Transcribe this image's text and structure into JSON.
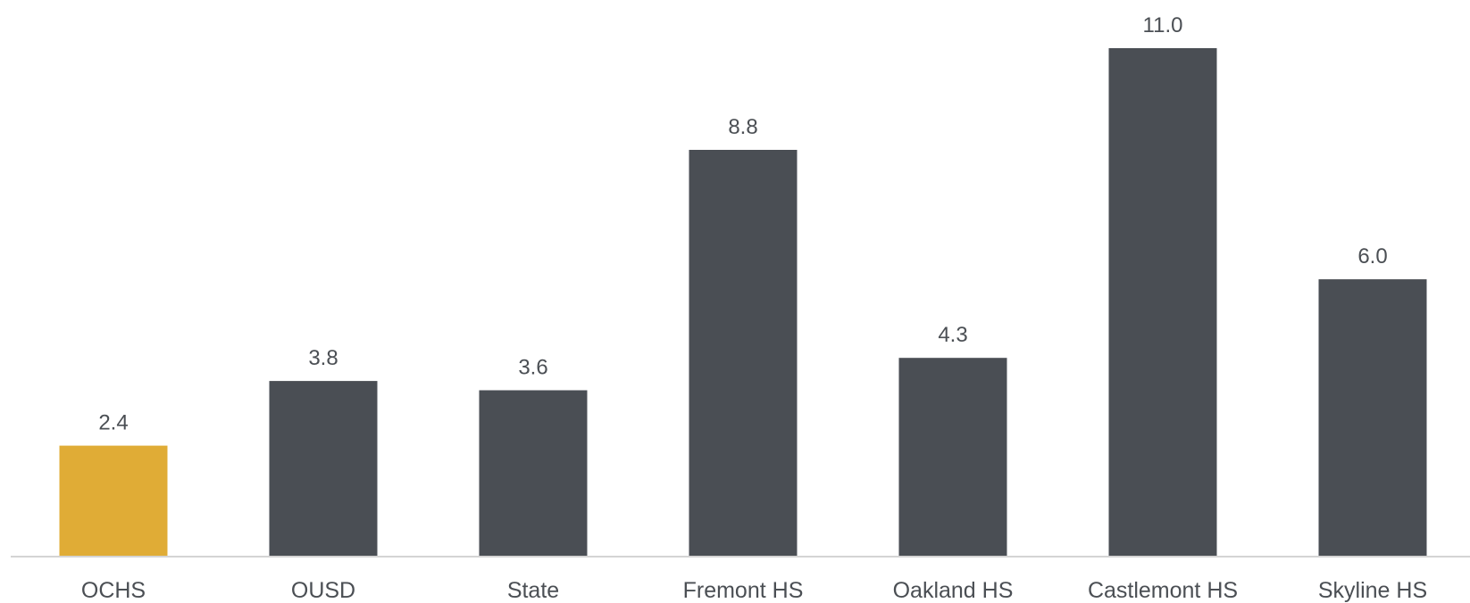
{
  "chart_data": {
    "type": "bar",
    "title": "",
    "xlabel": "",
    "ylabel": "",
    "categories": [
      "OCHS",
      "OUSD",
      "State",
      "Fremont HS",
      "Oakland HS",
      "Castlemont HS",
      "Skyline HS"
    ],
    "values": [
      2.4,
      3.8,
      3.6,
      8.8,
      4.3,
      11.0,
      6.0
    ],
    "value_labels": [
      "2.4",
      "3.8",
      "3.6",
      "8.8",
      "4.3",
      "11.0",
      "6.0"
    ],
    "ylim": [
      0,
      11.0
    ],
    "grid": false,
    "legend": "none",
    "colors": {
      "highlight": "#e0ac36",
      "default": "#4a4e54",
      "axis": "#d4d4d4",
      "text": "#4b4f54"
    },
    "highlight_index": 0
  }
}
